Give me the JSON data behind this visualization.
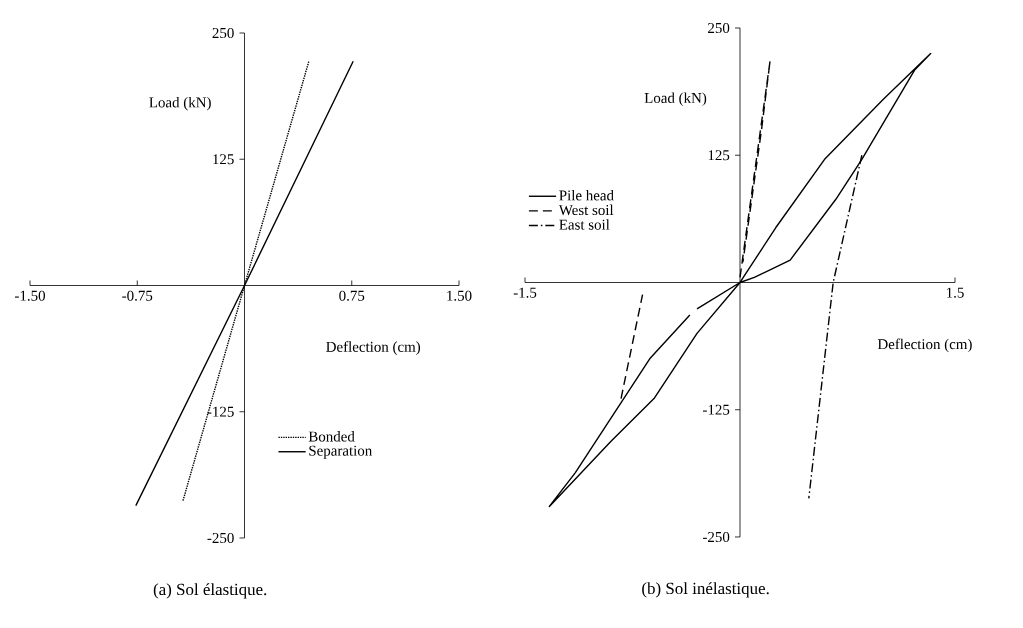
{
  "chart_data": [
    {
      "type": "line",
      "xlabel": "Deflection (cm)",
      "ylabel": "Load (kN)",
      "annotations": [
        "(a) Sol élastique."
      ],
      "xlim": [
        -1.5,
        1.5
      ],
      "ylim": [
        -250,
        250
      ],
      "xticks": [
        {
          "value": -1.5,
          "label": "-1.50"
        },
        {
          "value": -0.75,
          "label": "-0.75"
        },
        {
          "value": 0.75,
          "label": "0.75"
        },
        {
          "value": 1.5,
          "label": "1.50"
        }
      ],
      "yticks": [
        250,
        125,
        -125,
        -250
      ],
      "legend": "bottom right",
      "marker": "none",
      "series": [
        {
          "name": "Bonded",
          "color": "#000000",
          "line_style": "dotted",
          "x": [
            -0.43,
            0,
            0.45
          ],
          "values": [
            -213,
            0,
            222
          ]
        },
        {
          "name": "Separation",
          "color": "#000000",
          "line_style": "solid",
          "x": [
            -0.76,
            0,
            0.76
          ],
          "values": [
            -218,
            0,
            222
          ]
        }
      ]
    },
    {
      "type": "line",
      "xlabel": "Deflection (cm)",
      "ylabel": "Load (kN)",
      "annotations": [
        "(b) Sol inélastique."
      ],
      "xlim": [
        -1.5,
        1.5
      ],
      "ylim": [
        -250,
        250
      ],
      "xticks": [
        -1.5,
        1.5
      ],
      "yticks": [
        250,
        125,
        -125,
        -250
      ],
      "legend": "left",
      "marker": "none",
      "series": [
        {
          "name": "Pile head",
          "color": "#000000",
          "line_style": "solid",
          "x": [
            -0.3,
            0,
            0.25,
            0.59,
            1.0,
            1.33,
            1.22,
            0.85,
            0.67,
            0.35,
            0.1,
            0,
            -0.3,
            -0.6,
            -0.9,
            -1.33,
            -1.15,
            -0.63,
            -0.35
          ],
          "values": [
            -26,
            0,
            54,
            121,
            180,
            225,
            209,
            121,
            82,
            22,
            5,
            0,
            -50,
            -114,
            -156,
            -220,
            -187,
            -75,
            -32
          ]
        },
        {
          "name": "West soil",
          "color": "#000000",
          "line_style": "dashed",
          "x": [
            0.0,
            0.21,
            0.15,
            0.02
          ],
          "values": [
            5,
            218,
            150,
            20
          ]
        },
        {
          "name": "East soil",
          "color": "#000000",
          "line_style": "dashdot",
          "x": [
            0.85,
            0.65,
            0.48
          ],
          "values": [
            125,
            0,
            -212
          ]
        },
        {
          "color": "#000000",
          "line_style": "dashed",
          "x": [
            -0.83,
            -0.68
          ],
          "values": [
            -114,
            -12
          ]
        }
      ]
    }
  ]
}
